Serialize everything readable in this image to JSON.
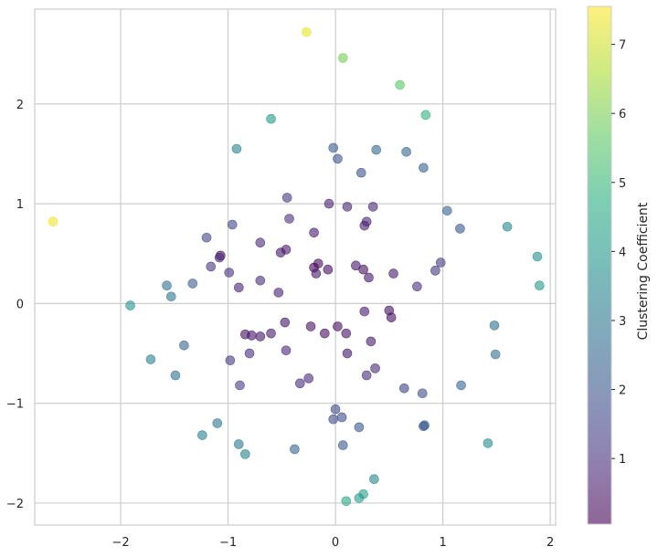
{
  "chart_data": {
    "type": "scatter",
    "title": "",
    "xlabel": "",
    "ylabel": "",
    "xlim": [
      -2.8,
      2.05
    ],
    "ylim": [
      -2.22,
      2.95
    ],
    "x_ticks": [
      -2,
      -1,
      0,
      1,
      2
    ],
    "x_tick_labels": [
      "−2",
      "−1",
      "0",
      "1",
      "2"
    ],
    "y_ticks": [
      -2,
      -1,
      0,
      1,
      2
    ],
    "y_tick_labels": [
      "−2",
      "−1",
      "0",
      "1",
      "2"
    ],
    "grid": true,
    "colormap": "viridis",
    "point_alpha": 0.6,
    "colorbar": {
      "label": "Clustering Coefficient",
      "range": [
        0.05,
        7.55
      ],
      "ticks": [
        1,
        2,
        3,
        4,
        5,
        6,
        7
      ],
      "tick_labels": [
        "1",
        "2",
        "3",
        "4",
        "5",
        "6",
        "7"
      ]
    },
    "points": [
      {
        "x": -0.27,
        "y": 2.72,
        "c": 7.3
      },
      {
        "x": -2.63,
        "y": 0.82,
        "c": 7.4
      },
      {
        "x": 0.07,
        "y": 2.46,
        "c": 5.9
      },
      {
        "x": 0.6,
        "y": 2.19,
        "c": 5.6
      },
      {
        "x": 0.84,
        "y": 1.89,
        "c": 4.9
      },
      {
        "x": -0.6,
        "y": 1.85,
        "c": 4.0
      },
      {
        "x": -0.92,
        "y": 1.55,
        "c": 3.4
      },
      {
        "x": -0.02,
        "y": 1.56,
        "c": 2.2
      },
      {
        "x": 0.02,
        "y": 1.45,
        "c": 2.0
      },
      {
        "x": 0.38,
        "y": 1.54,
        "c": 2.5
      },
      {
        "x": 0.66,
        "y": 1.52,
        "c": 2.5
      },
      {
        "x": 0.82,
        "y": 1.36,
        "c": 2.3
      },
      {
        "x": 0.24,
        "y": 1.31,
        "c": 1.9
      },
      {
        "x": 1.04,
        "y": 0.93,
        "c": 2.3
      },
      {
        "x": 1.16,
        "y": 0.75,
        "c": 2.0
      },
      {
        "x": 1.6,
        "y": 0.77,
        "c": 3.5
      },
      {
        "x": 1.88,
        "y": 0.47,
        "c": 3.8
      },
      {
        "x": 1.9,
        "y": 0.18,
        "c": 4.0
      },
      {
        "x": -0.45,
        "y": 1.06,
        "c": 1.2
      },
      {
        "x": -0.06,
        "y": 1.0,
        "c": 0.7
      },
      {
        "x": 0.11,
        "y": 0.97,
        "c": 0.8
      },
      {
        "x": 0.35,
        "y": 0.97,
        "c": 0.8
      },
      {
        "x": -0.43,
        "y": 0.85,
        "c": 1.0
      },
      {
        "x": 0.29,
        "y": 0.82,
        "c": 0.8
      },
      {
        "x": 0.27,
        "y": 0.78,
        "c": 0.7
      },
      {
        "x": -0.2,
        "y": 0.71,
        "c": 0.6
      },
      {
        "x": -1.2,
        "y": 0.66,
        "c": 1.6
      },
      {
        "x": -0.96,
        "y": 0.79,
        "c": 1.6
      },
      {
        "x": -0.7,
        "y": 0.61,
        "c": 0.9
      },
      {
        "x": -0.51,
        "y": 0.51,
        "c": 0.5
      },
      {
        "x": -0.46,
        "y": 0.54,
        "c": 0.6
      },
      {
        "x": -1.07,
        "y": 0.48,
        "c": 0.3
      },
      {
        "x": -1.08,
        "y": 0.46,
        "c": 0.8
      },
      {
        "x": -1.16,
        "y": 0.37,
        "c": 1.2
      },
      {
        "x": -0.99,
        "y": 0.31,
        "c": 1.1
      },
      {
        "x": -0.16,
        "y": 0.4,
        "c": 0.3
      },
      {
        "x": -0.2,
        "y": 0.36,
        "c": 0.1
      },
      {
        "x": -0.07,
        "y": 0.34,
        "c": 0.3
      },
      {
        "x": -0.18,
        "y": 0.3,
        "c": 0.5
      },
      {
        "x": 0.19,
        "y": 0.38,
        "c": 0.5
      },
      {
        "x": 0.26,
        "y": 0.34,
        "c": 0.3
      },
      {
        "x": 0.31,
        "y": 0.26,
        "c": 0.5
      },
      {
        "x": 0.54,
        "y": 0.3,
        "c": 0.6
      },
      {
        "x": 0.76,
        "y": 0.17,
        "c": 1.0
      },
      {
        "x": 0.93,
        "y": 0.33,
        "c": 1.2
      },
      {
        "x": 0.98,
        "y": 0.41,
        "c": 1.3
      },
      {
        "x": -0.7,
        "y": 0.23,
        "c": 0.9
      },
      {
        "x": -0.9,
        "y": 0.16,
        "c": 0.8
      },
      {
        "x": -0.53,
        "y": 0.11,
        "c": 0.7
      },
      {
        "x": -1.33,
        "y": 0.2,
        "c": 2.2
      },
      {
        "x": -1.57,
        "y": 0.18,
        "c": 2.8
      },
      {
        "x": -1.53,
        "y": 0.07,
        "c": 2.9
      },
      {
        "x": -1.91,
        "y": -0.02,
        "c": 3.9
      },
      {
        "x": 0.27,
        "y": -0.08,
        "c": 0.6
      },
      {
        "x": 0.5,
        "y": -0.07,
        "c": 0.4
      },
      {
        "x": 0.52,
        "y": -0.14,
        "c": 0.3
      },
      {
        "x": -0.47,
        "y": -0.19,
        "c": 0.5
      },
      {
        "x": -0.23,
        "y": -0.23,
        "c": 0.4
      },
      {
        "x": 0.02,
        "y": -0.23,
        "c": 0.3
      },
      {
        "x": 0.1,
        "y": -0.3,
        "c": 0.4
      },
      {
        "x": -0.1,
        "y": -0.3,
        "c": 0.3
      },
      {
        "x": -0.84,
        "y": -0.31,
        "c": 0.4
      },
      {
        "x": -0.78,
        "y": -0.32,
        "c": 0.5
      },
      {
        "x": -0.7,
        "y": -0.33,
        "c": 0.5
      },
      {
        "x": -0.6,
        "y": -0.3,
        "c": 0.6
      },
      {
        "x": 0.33,
        "y": -0.38,
        "c": 0.6
      },
      {
        "x": -0.46,
        "y": -0.47,
        "c": 0.8
      },
      {
        "x": 0.11,
        "y": -0.5,
        "c": 0.5
      },
      {
        "x": -0.8,
        "y": -0.5,
        "c": 1.0
      },
      {
        "x": -0.98,
        "y": -0.57,
        "c": 1.3
      },
      {
        "x": -1.41,
        "y": -0.42,
        "c": 2.4
      },
      {
        "x": -1.72,
        "y": -0.56,
        "c": 3.3
      },
      {
        "x": -1.49,
        "y": -0.72,
        "c": 2.8
      },
      {
        "x": 0.37,
        "y": -0.65,
        "c": 0.9
      },
      {
        "x": 0.29,
        "y": -0.72,
        "c": 0.9
      },
      {
        "x": -0.25,
        "y": -0.75,
        "c": 0.9
      },
      {
        "x": -0.33,
        "y": -0.8,
        "c": 1.0
      },
      {
        "x": -0.89,
        "y": -0.82,
        "c": 1.3
      },
      {
        "x": 0.64,
        "y": -0.85,
        "c": 1.5
      },
      {
        "x": 0.81,
        "y": -0.9,
        "c": 1.8
      },
      {
        "x": 1.17,
        "y": -0.82,
        "c": 2.4
      },
      {
        "x": 1.48,
        "y": -0.22,
        "c": 2.8
      },
      {
        "x": 1.49,
        "y": -0.51,
        "c": 2.8
      },
      {
        "x": 0.0,
        "y": -1.06,
        "c": 1.7
      },
      {
        "x": -0.02,
        "y": -1.16,
        "c": 1.7
      },
      {
        "x": 0.06,
        "y": -1.14,
        "c": 1.7
      },
      {
        "x": 0.22,
        "y": -1.24,
        "c": 2.0
      },
      {
        "x": 0.82,
        "y": -1.23,
        "c": 1.8
      },
      {
        "x": 0.83,
        "y": -1.22,
        "c": 2.2
      },
      {
        "x": -1.1,
        "y": -1.2,
        "c": 3.0
      },
      {
        "x": -1.24,
        "y": -1.32,
        "c": 3.3
      },
      {
        "x": -0.9,
        "y": -1.41,
        "c": 3.0
      },
      {
        "x": -0.84,
        "y": -1.51,
        "c": 3.3
      },
      {
        "x": -0.38,
        "y": -1.46,
        "c": 2.4
      },
      {
        "x": 0.07,
        "y": -1.42,
        "c": 2.0
      },
      {
        "x": 1.42,
        "y": -1.4,
        "c": 3.7
      },
      {
        "x": 0.36,
        "y": -1.76,
        "c": 3.4
      },
      {
        "x": 0.26,
        "y": -1.91,
        "c": 4.2
      },
      {
        "x": 0.22,
        "y": -1.95,
        "c": 4.1
      },
      {
        "x": 0.1,
        "y": -1.98,
        "c": 4.5
      }
    ]
  }
}
